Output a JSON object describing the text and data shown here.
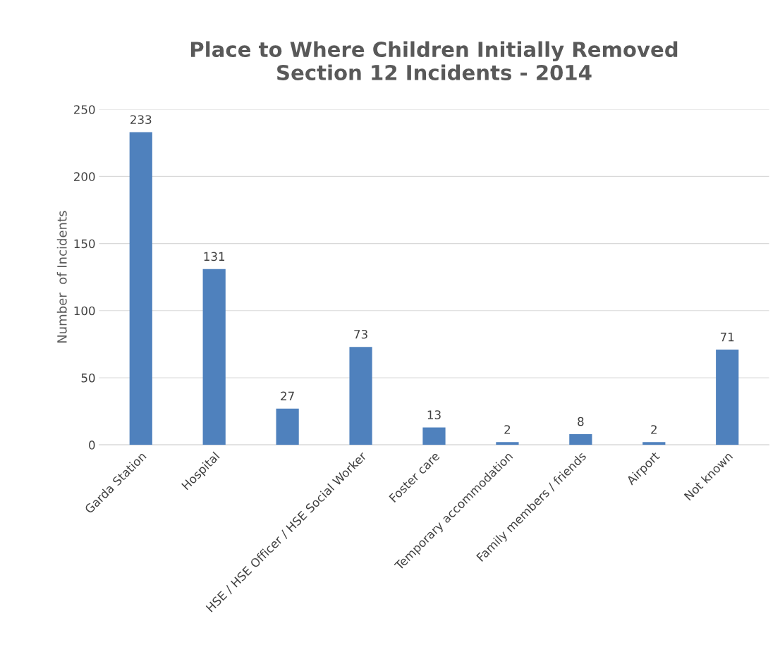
{
  "chart_data": {
    "type": "bar",
    "title": "Place to Where Children Initially Removed\nSection 12 Incidents - 2014",
    "ylabel": "Number  of Incidents",
    "categories": [
      "Garda Station",
      "Hospital",
      null,
      "HSE / HSE Officer / HSE Social Worker",
      "Foster care",
      "Temporary accommodation",
      "Family members / friends",
      "Airport",
      "Not known"
    ],
    "values": [
      233,
      131,
      27,
      73,
      13,
      2,
      8,
      2,
      71
    ],
    "color": "#4f81bd",
    "ylim": [
      0,
      250
    ],
    "yticks": [
      0,
      50,
      100,
      150,
      200,
      250
    ],
    "grid": "y",
    "data_labels": true,
    "legend": false
  }
}
